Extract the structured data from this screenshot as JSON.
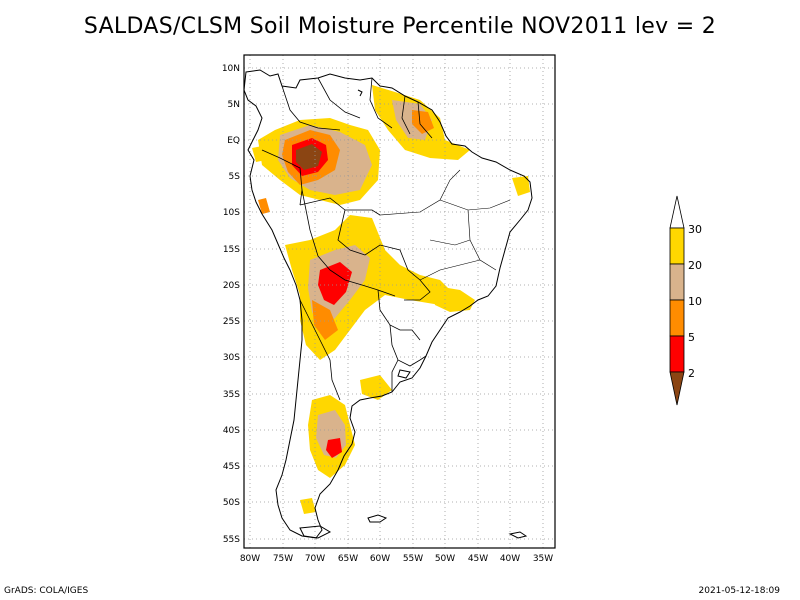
{
  "title": "SALDAS/CLSM Soil Moisture Percentile NOV2011 lev = 2",
  "footer": {
    "left": "GrADS: COLA/IGES",
    "right": "2021-05-12-18:09"
  },
  "map": {
    "lat_labels": [
      "10N",
      "5N",
      "EQ",
      "5S",
      "10S",
      "15S",
      "20S",
      "25S",
      "30S",
      "35S",
      "40S",
      "45S",
      "50S",
      "55S"
    ],
    "lon_labels": [
      "80W",
      "75W",
      "70W",
      "65W",
      "60W",
      "55W",
      "50W",
      "45W",
      "40W",
      "35W"
    ],
    "lat_range": [
      -56,
      12
    ],
    "lon_range": [
      -81,
      -33
    ],
    "gridlines": "dotted"
  },
  "legend": {
    "labels": [
      "30",
      "20",
      "10",
      "5",
      "2"
    ],
    "colors": {
      "above30": "#ffffff",
      "20to30": "#ffd700",
      "10to20": "#d9b38c",
      "5to10": "#ff8c00",
      "2to5": "#ff0000",
      "below2": "#8b4513"
    }
  },
  "colors": {
    "land": "#ffffff",
    "border": "#000000",
    "grid": "#999999"
  }
}
